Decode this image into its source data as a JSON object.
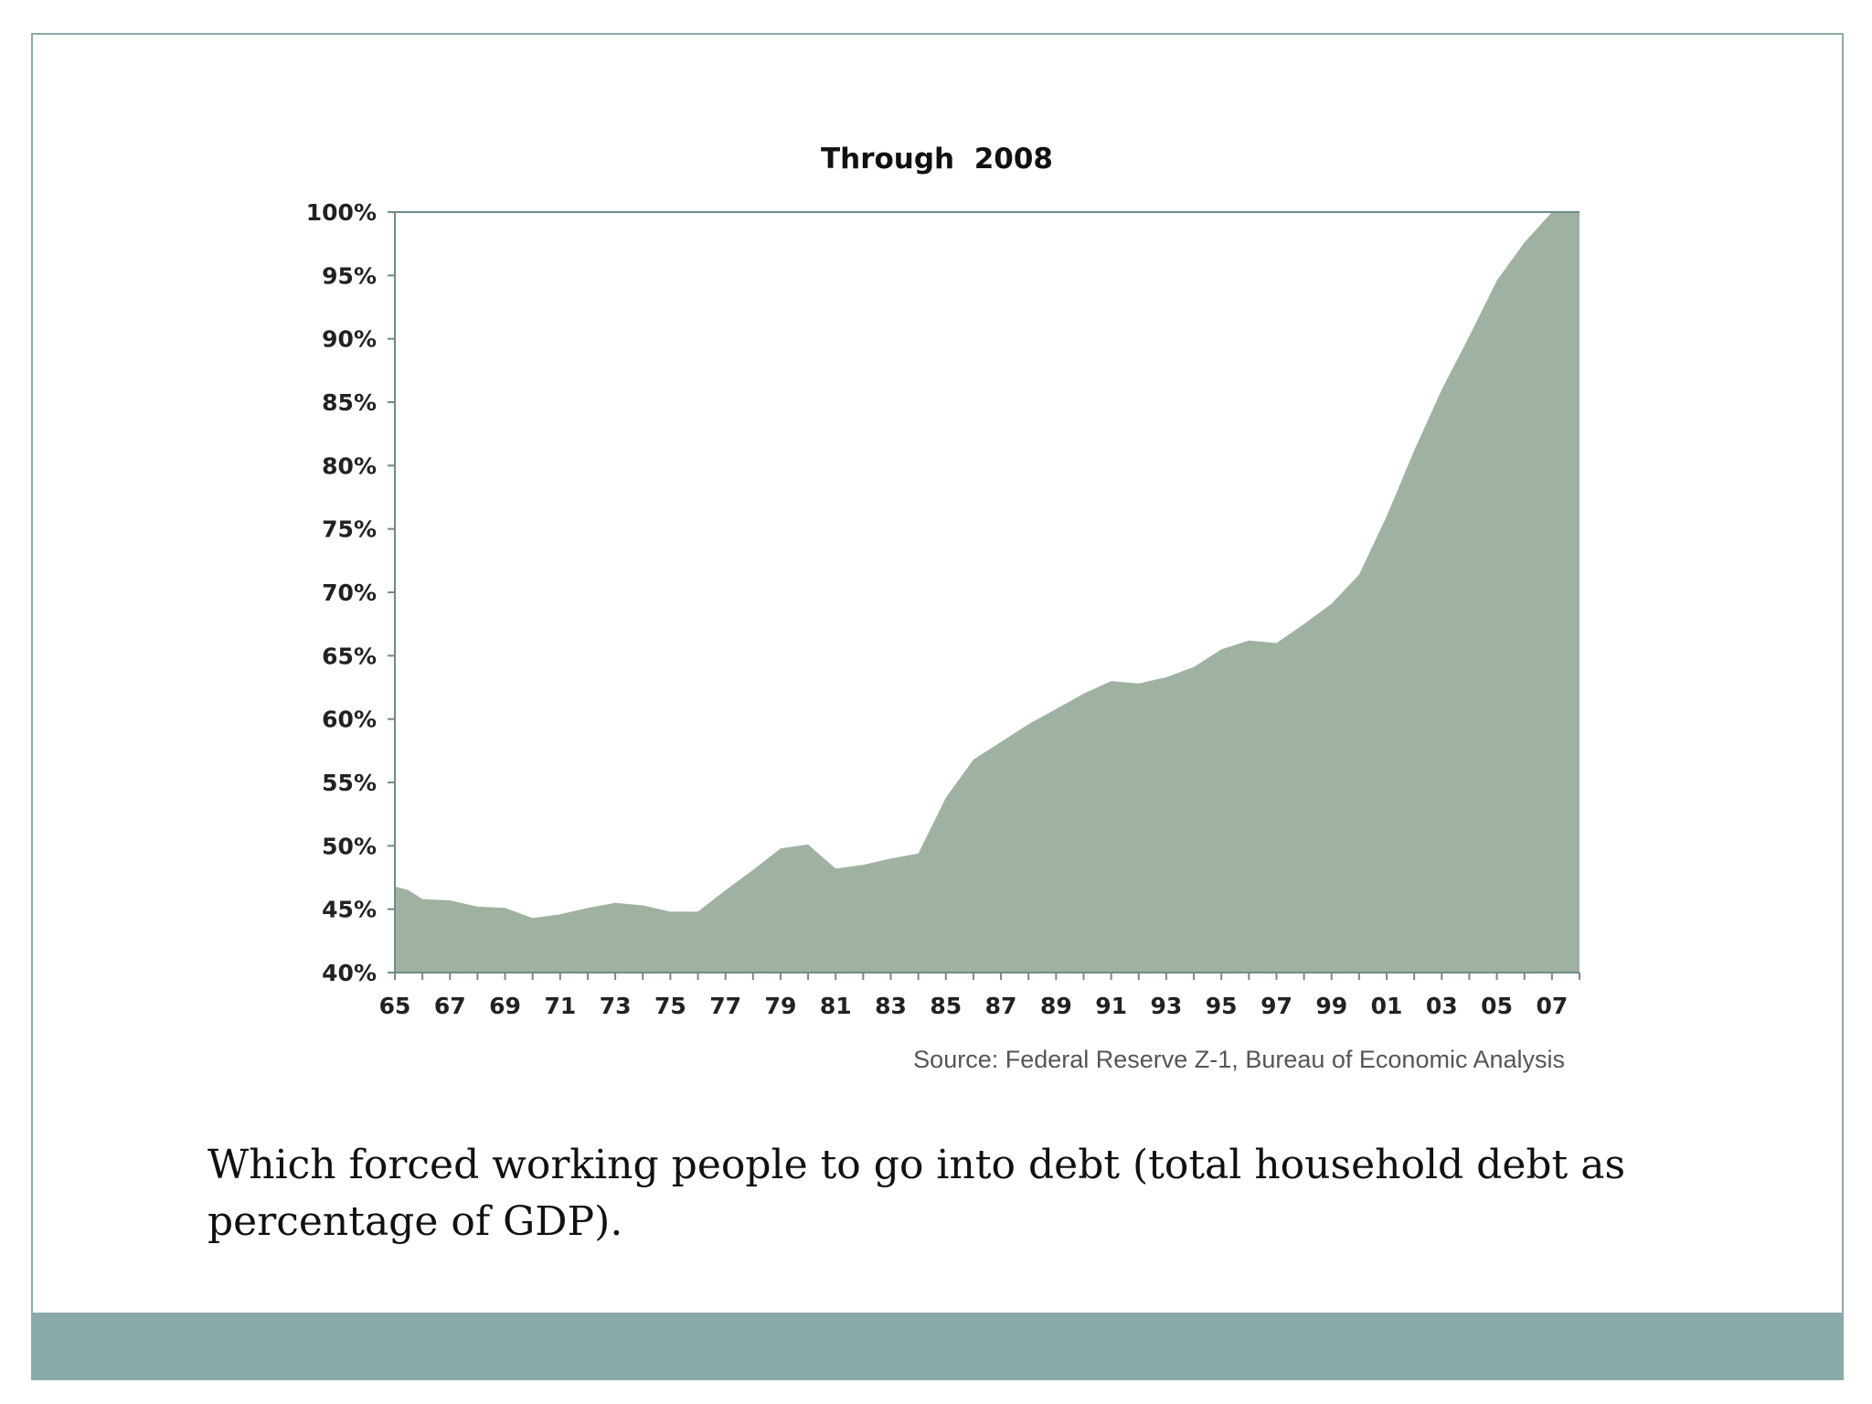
{
  "caption": "Which forced working people to go into debt (total household debt as percentage of GDP).",
  "colors": {
    "frame": "#8aaaa9",
    "bottom_bar": "#8aaaa9",
    "area_fill": "#9fb2a2",
    "axis": "#6f8a8a"
  },
  "chart_data": {
    "type": "area",
    "title": "Through  2008",
    "xlabel": "",
    "ylabel": "",
    "ylim": [
      40,
      100
    ],
    "xlim": [
      1965,
      2008
    ],
    "grid": false,
    "yticks": [
      {
        "value": 100,
        "label": "100%"
      },
      {
        "value": 95,
        "label": "95%"
      },
      {
        "value": 90,
        "label": "90%"
      },
      {
        "value": 85,
        "label": "85%"
      },
      {
        "value": 80,
        "label": "80%"
      },
      {
        "value": 75,
        "label": "75%"
      },
      {
        "value": 70,
        "label": "70%"
      },
      {
        "value": 65,
        "label": "65%"
      },
      {
        "value": 60,
        "label": "60%"
      },
      {
        "value": 55,
        "label": "55%"
      },
      {
        "value": 50,
        "label": "50%"
      },
      {
        "value": 45,
        "label": "45%"
      },
      {
        "value": 40,
        "label": "40%"
      }
    ],
    "xticks": [
      {
        "value": 1965,
        "label": "65"
      },
      {
        "value": 1967,
        "label": "67"
      },
      {
        "value": 1969,
        "label": "69"
      },
      {
        "value": 1971,
        "label": "71"
      },
      {
        "value": 1973,
        "label": "73"
      },
      {
        "value": 1975,
        "label": "75"
      },
      {
        "value": 1977,
        "label": "77"
      },
      {
        "value": 1979,
        "label": "79"
      },
      {
        "value": 1981,
        "label": "81"
      },
      {
        "value": 1983,
        "label": "83"
      },
      {
        "value": 1985,
        "label": "85"
      },
      {
        "value": 1987,
        "label": "87"
      },
      {
        "value": 1989,
        "label": "89"
      },
      {
        "value": 1991,
        "label": "91"
      },
      {
        "value": 1993,
        "label": "93"
      },
      {
        "value": 1995,
        "label": "95"
      },
      {
        "value": 1997,
        "label": "97"
      },
      {
        "value": 1999,
        "label": "99"
      },
      {
        "value": 2001,
        "label": "01"
      },
      {
        "value": 2003,
        "label": "03"
      },
      {
        "value": 2005,
        "label": "05"
      },
      {
        "value": 2007,
        "label": "07"
      }
    ],
    "source": "Source: Federal Reserve Z-1, Bureau of Economic Analysis",
    "series": [
      {
        "x": [
          1965,
          1965.5,
          1966,
          1967,
          1968,
          1969,
          1970,
          1971,
          1972,
          1973,
          1974,
          1975,
          1976,
          1977,
          1978,
          1979,
          1980,
          1981,
          1982,
          1983,
          1984,
          1985,
          1986,
          1987,
          1988,
          1989,
          1990,
          1991,
          1992,
          1993,
          1994,
          1995,
          1996,
          1997,
          1998,
          1999,
          2000,
          2001,
          2002,
          2003,
          2004,
          2005,
          2006,
          2007,
          2008
        ],
        "values": [
          46.8,
          46.5,
          45.8,
          45.7,
          45.2,
          45.1,
          44.3,
          44.6,
          45.1,
          45.5,
          45.3,
          44.8,
          44.8,
          46.5,
          48.1,
          49.8,
          50.1,
          48.2,
          48.5,
          49.0,
          49.4,
          53.8,
          56.8,
          58.2,
          59.6,
          60.8,
          62.0,
          63.0,
          62.8,
          63.3,
          64.1,
          65.5,
          66.2,
          66.0,
          67.5,
          69.1,
          71.4,
          76.0,
          81.2,
          86.0,
          90.2,
          94.6,
          97.6,
          100.0,
          100.3
        ]
      }
    ]
  }
}
